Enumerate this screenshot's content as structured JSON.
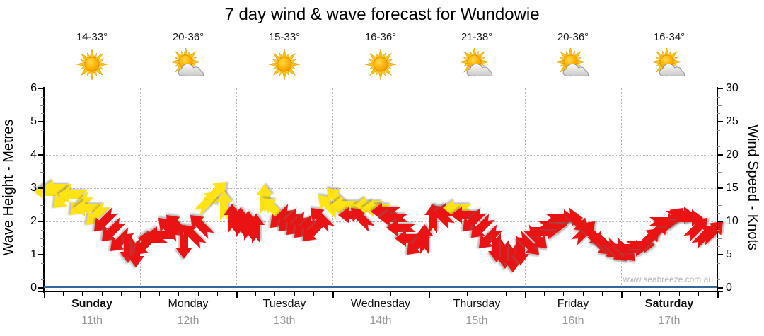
{
  "title": "7 day wind & wave forecast for Wundowie",
  "watermark": "www.seabreeze.com.au",
  "colors": {
    "arrow_yellow": "#ffe312",
    "arrow_red": "#ea1212",
    "axis_bottom_blue": "#336699",
    "gridline": "#b8b8b8",
    "date_gray": "#999999",
    "watermark_gray": "#b3b3b3"
  },
  "days": [
    {
      "name": "Sunday",
      "date": "11th",
      "temp": "14-33°",
      "icon": "sunny",
      "bold": true
    },
    {
      "name": "Monday",
      "date": "12th",
      "temp": "20-36°",
      "icon": "partly-cloudy",
      "bold": false
    },
    {
      "name": "Tuesday",
      "date": "13th",
      "temp": "15-33°",
      "icon": "sunny",
      "bold": false
    },
    {
      "name": "Wednesday",
      "date": "14th",
      "temp": "16-36°",
      "icon": "sunny",
      "bold": false
    },
    {
      "name": "Thursday",
      "date": "15th",
      "temp": "21-38°",
      "icon": "partly-cloudy",
      "bold": false
    },
    {
      "name": "Friday",
      "date": "16th",
      "temp": "20-36°",
      "icon": "partly-cloudy",
      "bold": false
    },
    {
      "name": "Saturday",
      "date": "17th",
      "temp": "16-34°",
      "icon": "partly-cloudy",
      "bold": true
    }
  ],
  "chart_data": {
    "type": "scatter",
    "title": "7 day wind & wave forecast for Wundowie",
    "x_axis": {
      "categories": [
        "Sunday 11th",
        "Monday 12th",
        "Tuesday 13th",
        "Wednesday 14th",
        "Thursday 15th",
        "Friday 16th",
        "Saturday 17th"
      ]
    },
    "y_left": {
      "label": "Wave Height - Metres",
      "range": [
        0,
        6
      ],
      "ticks": [
        0,
        1,
        2,
        3,
        4,
        5,
        6
      ]
    },
    "y_right": {
      "label": "Wind Speed - Knots",
      "range": [
        0,
        30
      ],
      "ticks": [
        0,
        5,
        10,
        15,
        20,
        25,
        30
      ]
    },
    "grid": true,
    "series_unit": "knots",
    "arrows": [
      {
        "day": 0,
        "slot": 0,
        "knots": 14.5,
        "dir": "W",
        "color": "yellow"
      },
      {
        "day": 0,
        "slot": 1,
        "knots": 15.0,
        "dir": "W",
        "color": "yellow"
      },
      {
        "day": 0,
        "slot": 2,
        "knots": 13.5,
        "dir": "SW",
        "color": "yellow"
      },
      {
        "day": 0,
        "slot": 3,
        "knots": 14.0,
        "dir": "W",
        "color": "yellow"
      },
      {
        "day": 0,
        "slot": 4,
        "knots": 12.5,
        "dir": "SW",
        "color": "yellow"
      },
      {
        "day": 0,
        "slot": 5,
        "knots": 12.0,
        "dir": "W",
        "color": "yellow"
      },
      {
        "day": 0,
        "slot": 6,
        "knots": 11.0,
        "dir": "SW",
        "color": "yellow"
      },
      {
        "day": 0,
        "slot": 7,
        "knots": 10.0,
        "dir": "SW",
        "color": "red"
      },
      {
        "day": 0,
        "slot": 8,
        "knots": 8.5,
        "dir": "SW",
        "color": "red"
      },
      {
        "day": 0,
        "slot": 9,
        "knots": 7.0,
        "dir": "SW",
        "color": "red"
      },
      {
        "day": 0,
        "slot": 10,
        "knots": 5.8,
        "dir": "S",
        "color": "red"
      },
      {
        "day": 0,
        "slot": 11,
        "knots": 5.2,
        "dir": "S",
        "color": "red"
      },
      {
        "day": 1,
        "slot": 0,
        "knots": 6.5,
        "dir": "SW",
        "color": "red"
      },
      {
        "day": 1,
        "slot": 1,
        "knots": 7.5,
        "dir": "W",
        "color": "red"
      },
      {
        "day": 1,
        "slot": 2,
        "knots": 8.0,
        "dir": "W",
        "color": "red"
      },
      {
        "day": 1,
        "slot": 3,
        "knots": 9.0,
        "dir": "NW",
        "color": "red"
      },
      {
        "day": 1,
        "slot": 4,
        "knots": 9.5,
        "dir": "NW",
        "color": "red"
      },
      {
        "day": 1,
        "slot": 5,
        "knots": 6.5,
        "dir": "S",
        "color": "red"
      },
      {
        "day": 1,
        "slot": 6,
        "knots": 8.0,
        "dir": "NW",
        "color": "red"
      },
      {
        "day": 1,
        "slot": 7,
        "knots": 9.5,
        "dir": "NW",
        "color": "red"
      },
      {
        "day": 1,
        "slot": 8,
        "knots": 13.0,
        "dir": "NE",
        "color": "yellow"
      },
      {
        "day": 1,
        "slot": 9,
        "knots": 14.5,
        "dir": "NE",
        "color": "yellow"
      },
      {
        "day": 1,
        "slot": 10,
        "knots": 12.5,
        "dir": "N",
        "color": "yellow"
      },
      {
        "day": 1,
        "slot": 11,
        "knots": 10.5,
        "dir": "N",
        "color": "red"
      },
      {
        "day": 2,
        "slot": 0,
        "knots": 10.0,
        "dir": "N",
        "color": "red"
      },
      {
        "day": 2,
        "slot": 1,
        "knots": 9.5,
        "dir": "N",
        "color": "red"
      },
      {
        "day": 2,
        "slot": 2,
        "knots": 9.0,
        "dir": "N",
        "color": "red"
      },
      {
        "day": 2,
        "slot": 3,
        "knots": 13.5,
        "dir": "N",
        "color": "yellow"
      },
      {
        "day": 2,
        "slot": 4,
        "knots": 12.0,
        "dir": "NW",
        "color": "yellow"
      },
      {
        "day": 2,
        "slot": 5,
        "knots": 10.5,
        "dir": "SW",
        "color": "red"
      },
      {
        "day": 2,
        "slot": 6,
        "knots": 10.0,
        "dir": "SW",
        "color": "red"
      },
      {
        "day": 2,
        "slot": 7,
        "knots": 9.5,
        "dir": "SW",
        "color": "red"
      },
      {
        "day": 2,
        "slot": 8,
        "knots": 9.0,
        "dir": "SW",
        "color": "red"
      },
      {
        "day": 2,
        "slot": 9,
        "knots": 8.5,
        "dir": "SW",
        "color": "red"
      },
      {
        "day": 2,
        "slot": 10,
        "knots": 10.5,
        "dir": "NW",
        "color": "red"
      },
      {
        "day": 2,
        "slot": 11,
        "knots": 12.5,
        "dir": "NW",
        "color": "yellow"
      },
      {
        "day": 3,
        "slot": 0,
        "knots": 13.5,
        "dir": "NW",
        "color": "yellow"
      },
      {
        "day": 3,
        "slot": 1,
        "knots": 12.5,
        "dir": "W",
        "color": "yellow"
      },
      {
        "day": 3,
        "slot": 2,
        "knots": 11.0,
        "dir": "W",
        "color": "red"
      },
      {
        "day": 3,
        "slot": 3,
        "knots": 10.5,
        "dir": "NW",
        "color": "red"
      },
      {
        "day": 3,
        "slot": 4,
        "knots": 12.5,
        "dir": "W",
        "color": "yellow"
      },
      {
        "day": 3,
        "slot": 5,
        "knots": 12.0,
        "dir": "W",
        "color": "yellow"
      },
      {
        "day": 3,
        "slot": 6,
        "knots": 11.5,
        "dir": "W",
        "color": "red"
      },
      {
        "day": 3,
        "slot": 7,
        "knots": 10.5,
        "dir": "W",
        "color": "red"
      },
      {
        "day": 3,
        "slot": 8,
        "knots": 9.0,
        "dir": "W",
        "color": "red"
      },
      {
        "day": 3,
        "slot": 9,
        "knots": 7.5,
        "dir": "W",
        "color": "red"
      },
      {
        "day": 3,
        "slot": 10,
        "knots": 6.5,
        "dir": "SW",
        "color": "red"
      },
      {
        "day": 3,
        "slot": 11,
        "knots": 7.5,
        "dir": "N",
        "color": "red"
      },
      {
        "day": 4,
        "slot": 0,
        "knots": 10.5,
        "dir": "N",
        "color": "red"
      },
      {
        "day": 4,
        "slot": 1,
        "knots": 11.0,
        "dir": "NW",
        "color": "red"
      },
      {
        "day": 4,
        "slot": 2,
        "knots": 11.5,
        "dir": "W",
        "color": "red"
      },
      {
        "day": 4,
        "slot": 3,
        "knots": 12.0,
        "dir": "W",
        "color": "yellow"
      },
      {
        "day": 4,
        "slot": 4,
        "knots": 11.0,
        "dir": "W",
        "color": "red"
      },
      {
        "day": 4,
        "slot": 5,
        "knots": 10.0,
        "dir": "SW",
        "color": "red"
      },
      {
        "day": 4,
        "slot": 6,
        "knots": 9.0,
        "dir": "SW",
        "color": "red"
      },
      {
        "day": 4,
        "slot": 7,
        "knots": 7.5,
        "dir": "SW",
        "color": "red"
      },
      {
        "day": 4,
        "slot": 8,
        "knots": 6.0,
        "dir": "S",
        "color": "red"
      },
      {
        "day": 4,
        "slot": 9,
        "knots": 5.0,
        "dir": "S",
        "color": "red"
      },
      {
        "day": 4,
        "slot": 10,
        "knots": 4.5,
        "dir": "S",
        "color": "red"
      },
      {
        "day": 4,
        "slot": 11,
        "knots": 5.5,
        "dir": "S",
        "color": "red"
      },
      {
        "day": 5,
        "slot": 0,
        "knots": 6.5,
        "dir": "SE",
        "color": "red"
      },
      {
        "day": 5,
        "slot": 1,
        "knots": 7.5,
        "dir": "SE",
        "color": "red"
      },
      {
        "day": 5,
        "slot": 2,
        "knots": 8.5,
        "dir": "E",
        "color": "red"
      },
      {
        "day": 5,
        "slot": 3,
        "knots": 9.5,
        "dir": "E",
        "color": "red"
      },
      {
        "day": 5,
        "slot": 4,
        "knots": 10.5,
        "dir": "E",
        "color": "red"
      },
      {
        "day": 5,
        "slot": 5,
        "knots": 10.5,
        "dir": "E",
        "color": "red"
      },
      {
        "day": 5,
        "slot": 6,
        "knots": 10.0,
        "dir": "SE",
        "color": "red"
      },
      {
        "day": 5,
        "slot": 7,
        "knots": 8.5,
        "dir": "NE",
        "color": "red"
      },
      {
        "day": 5,
        "slot": 8,
        "knots": 8.0,
        "dir": "SE",
        "color": "red"
      },
      {
        "day": 5,
        "slot": 9,
        "knots": 6.5,
        "dir": "SE",
        "color": "red"
      },
      {
        "day": 5,
        "slot": 10,
        "knots": 6.0,
        "dir": "SE",
        "color": "red"
      },
      {
        "day": 5,
        "slot": 11,
        "knots": 5.5,
        "dir": "SE",
        "color": "red"
      },
      {
        "day": 6,
        "slot": 0,
        "knots": 5.5,
        "dir": "SE",
        "color": "red"
      },
      {
        "day": 6,
        "slot": 1,
        "knots": 6.0,
        "dir": "E",
        "color": "red"
      },
      {
        "day": 6,
        "slot": 2,
        "knots": 6.5,
        "dir": "E",
        "color": "red"
      },
      {
        "day": 6,
        "slot": 3,
        "knots": 7.5,
        "dir": "NE",
        "color": "red"
      },
      {
        "day": 6,
        "slot": 4,
        "knots": 8.5,
        "dir": "NE",
        "color": "red"
      },
      {
        "day": 6,
        "slot": 5,
        "knots": 10.0,
        "dir": "E",
        "color": "red"
      },
      {
        "day": 6,
        "slot": 6,
        "knots": 10.5,
        "dir": "NE",
        "color": "red"
      },
      {
        "day": 6,
        "slot": 7,
        "knots": 11.0,
        "dir": "E",
        "color": "red"
      },
      {
        "day": 6,
        "slot": 8,
        "knots": 10.5,
        "dir": "E",
        "color": "red"
      },
      {
        "day": 6,
        "slot": 9,
        "knots": 9.0,
        "dir": "NE",
        "color": "red"
      },
      {
        "day": 6,
        "slot": 10,
        "knots": 8.0,
        "dir": "NE",
        "color": "red"
      },
      {
        "day": 6,
        "slot": 11,
        "knots": 8.5,
        "dir": "NE",
        "color": "red"
      }
    ]
  }
}
